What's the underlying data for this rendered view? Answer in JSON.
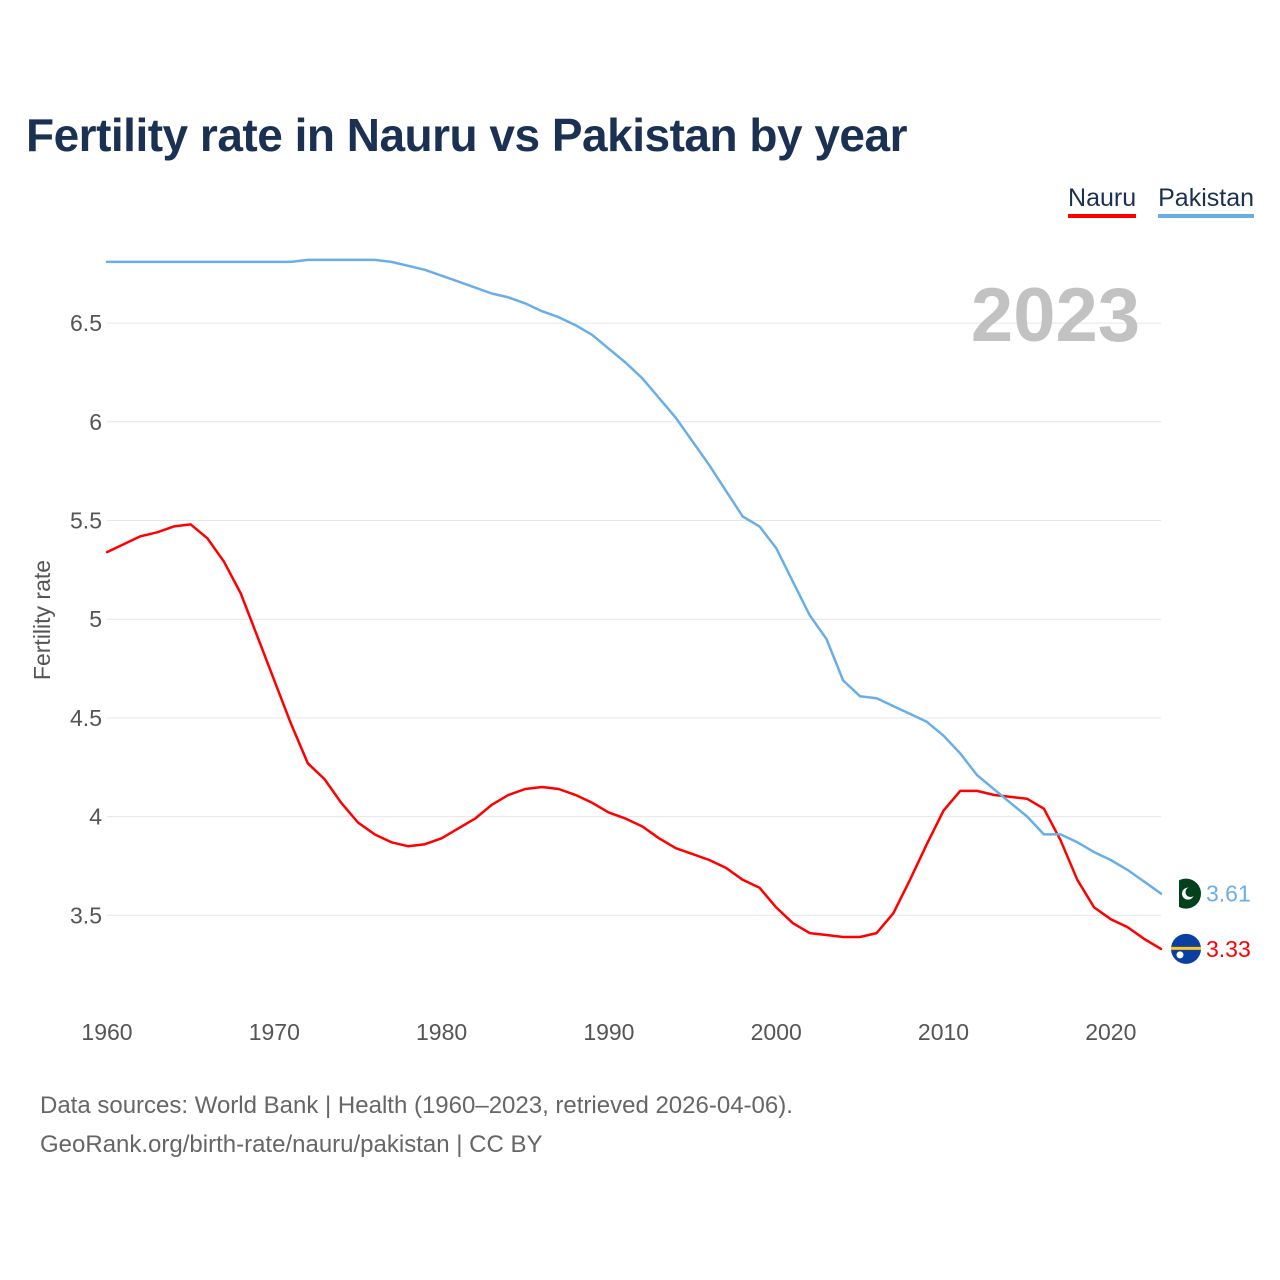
{
  "title": "Fertility rate in Nauru vs Pakistan by year",
  "legend": [
    {
      "label": "Nauru",
      "color": "#ff0000"
    },
    {
      "label": "Pakistan",
      "color": "#6aaee8"
    }
  ],
  "footer": {
    "line1": "Data sources: World Bank | Health (1960–2023, retrieved 2026-04-06).",
    "line2": "GeoRank.org/birth-rate/nauru/pakistan | CC BY"
  },
  "chart_data": {
    "type": "line",
    "title": "Fertility rate in Nauru vs Pakistan by year",
    "ylabel": "Fertility rate",
    "xlabel": "",
    "year_label": "2023",
    "xlim": [
      1960,
      2023
    ],
    "ylim": [
      3.0,
      6.85
    ],
    "xticks": [
      1960,
      1970,
      1980,
      1990,
      2000,
      2010,
      2020
    ],
    "yticks": [
      3.5,
      4,
      4.5,
      5,
      5.5,
      6,
      6.5
    ],
    "ytick_labels": [
      "3.5",
      "4",
      "4.5",
      "5",
      "5.5",
      "6",
      "6.5"
    ],
    "x": [
      1960,
      1961,
      1962,
      1963,
      1964,
      1965,
      1966,
      1967,
      1968,
      1969,
      1970,
      1971,
      1972,
      1973,
      1974,
      1975,
      1976,
      1977,
      1978,
      1979,
      1980,
      1981,
      1982,
      1983,
      1984,
      1985,
      1986,
      1987,
      1988,
      1989,
      1990,
      1991,
      1992,
      1993,
      1994,
      1995,
      1996,
      1997,
      1998,
      1999,
      2000,
      2001,
      2002,
      2003,
      2004,
      2005,
      2006,
      2007,
      2008,
      2009,
      2010,
      2011,
      2012,
      2013,
      2014,
      2015,
      2016,
      2017,
      2018,
      2019,
      2020,
      2021,
      2022,
      2023
    ],
    "series": [
      {
        "name": "Nauru",
        "color": "#ff0000",
        "end_label": "3.33",
        "values": [
          5.34,
          5.38,
          5.42,
          5.44,
          5.47,
          5.48,
          5.41,
          5.29,
          5.13,
          4.91,
          4.69,
          4.47,
          4.27,
          4.19,
          4.07,
          3.97,
          3.91,
          3.87,
          3.85,
          3.86,
          3.89,
          3.94,
          3.99,
          4.06,
          4.11,
          4.14,
          4.15,
          4.14,
          4.11,
          4.07,
          4.02,
          3.99,
          3.95,
          3.89,
          3.84,
          3.81,
          3.78,
          3.74,
          3.68,
          3.64,
          3.54,
          3.46,
          3.41,
          3.4,
          3.39,
          3.39,
          3.41,
          3.51,
          3.68,
          3.86,
          4.03,
          4.13,
          4.13,
          4.11,
          4.1,
          4.09,
          4.04,
          3.88,
          3.68,
          3.54,
          3.48,
          3.44,
          3.38,
          3.33
        ]
      },
      {
        "name": "Pakistan",
        "color": "#6aaee8",
        "end_label": "3.61",
        "values": [
          6.81,
          6.81,
          6.81,
          6.81,
          6.81,
          6.81,
          6.81,
          6.81,
          6.81,
          6.81,
          6.81,
          6.81,
          6.82,
          6.82,
          6.82,
          6.82,
          6.82,
          6.81,
          6.79,
          6.77,
          6.74,
          6.71,
          6.68,
          6.65,
          6.63,
          6.6,
          6.56,
          6.53,
          6.49,
          6.44,
          6.37,
          6.3,
          6.22,
          6.12,
          6.02,
          5.9,
          5.78,
          5.65,
          5.52,
          5.47,
          5.36,
          5.19,
          5.02,
          4.9,
          4.69,
          4.61,
          4.6,
          4.56,
          4.52,
          4.48,
          4.41,
          4.32,
          4.21,
          4.14,
          4.07,
          4.0,
          3.91,
          3.91,
          3.87,
          3.82,
          3.78,
          3.73,
          3.67,
          3.61
        ]
      }
    ]
  }
}
